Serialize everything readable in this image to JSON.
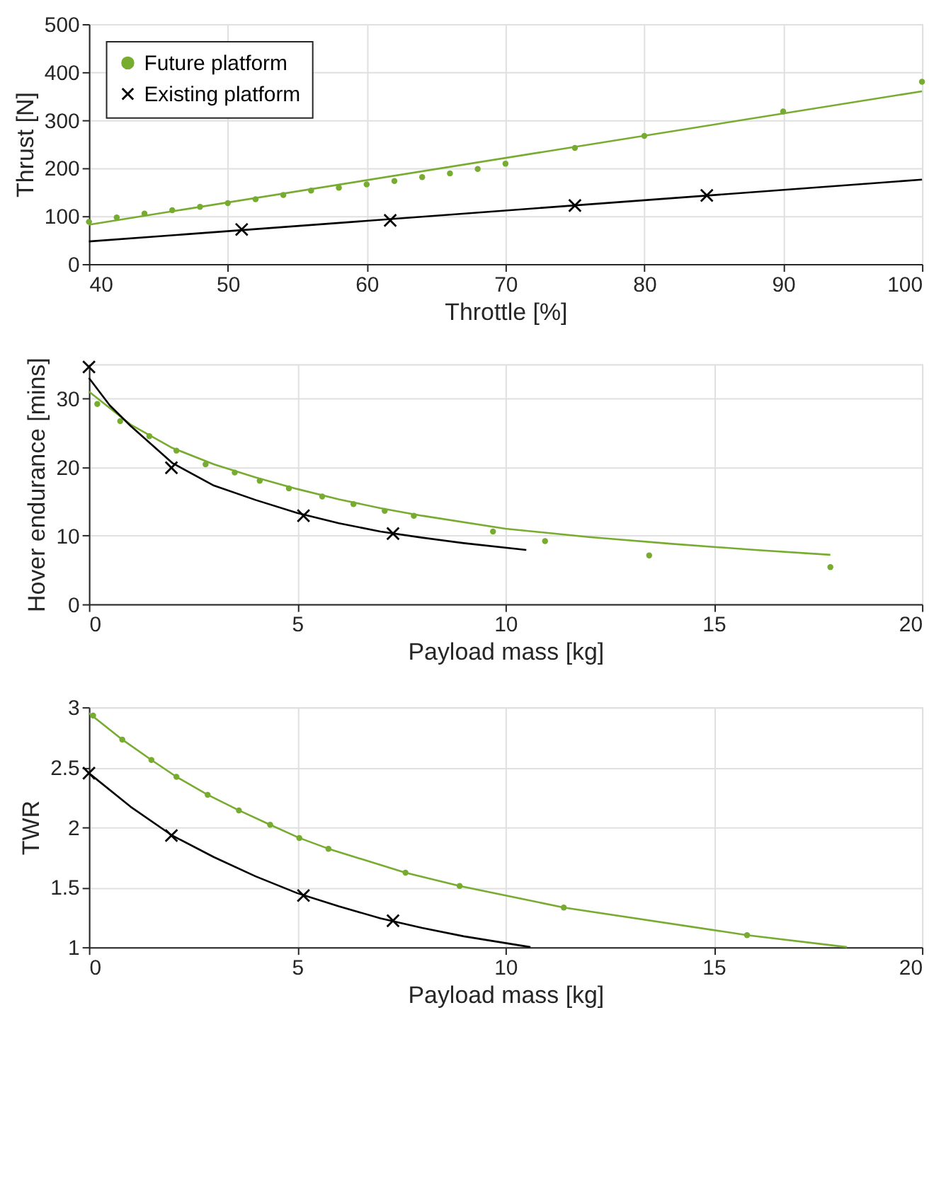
{
  "chart_data": [
    {
      "type": "scatter",
      "xlabel": "Throttle [%]",
      "ylabel": "Thrust [N]",
      "xlim": [
        40,
        100
      ],
      "xticks": [
        40,
        50,
        60,
        70,
        80,
        90,
        100
      ],
      "ylim": [
        0,
        500
      ],
      "yticks": [
        0,
        100,
        200,
        300,
        400,
        500
      ],
      "grid": true,
      "legend": "top left",
      "series": [
        {
          "name": "Future platform",
          "type": "scatter",
          "marker": "circle",
          "color": "#77ac30",
          "x": [
            40,
            42,
            44,
            46,
            48,
            50,
            52,
            54,
            56,
            58,
            60,
            62,
            64,
            66,
            68,
            70,
            75,
            80,
            90,
            100
          ],
          "values": [
            88,
            97,
            105,
            112,
            119,
            127,
            135,
            144,
            153,
            159,
            166,
            173,
            181,
            189,
            198,
            209,
            242,
            267,
            318,
            380
          ]
        },
        {
          "name": "Existing platform",
          "type": "scatter",
          "marker": "cross",
          "color": "#000000",
          "x": [
            51,
            61.7,
            75,
            84.5
          ],
          "values": [
            72,
            91,
            122,
            143
          ]
        },
        {
          "type": "line",
          "marker": "none",
          "color": "#77ac30",
          "x": [
            40,
            100
          ],
          "values": [
            82,
            360
          ]
        },
        {
          "type": "line",
          "marker": "none",
          "color": "#000000",
          "x": [
            40,
            100
          ],
          "values": [
            47,
            176
          ]
        }
      ]
    },
    {
      "type": "scatter",
      "xlabel": "Payload mass [kg]",
      "ylabel": "Hover endurance [mins]",
      "xlim": [
        0,
        20
      ],
      "xticks": [
        0,
        5,
        10,
        15,
        20
      ],
      "ylim": [
        0,
        35
      ],
      "yticks": [
        0,
        10,
        20,
        30
      ],
      "grid": true,
      "series": [
        {
          "type": "scatter",
          "marker": "circle",
          "color": "#77ac30",
          "x": [
            0.2,
            0.75,
            1.45,
            2.1,
            2.8,
            3.5,
            4.1,
            4.8,
            5.6,
            6.35,
            7.1,
            7.8,
            9.7,
            10.95,
            13.45,
            17.8
          ],
          "values": [
            29.2,
            26.7,
            24.5,
            22.4,
            20.4,
            19.2,
            18.0,
            16.9,
            15.7,
            14.6,
            13.6,
            12.9,
            10.6,
            9.2,
            7.1,
            5.4
          ]
        },
        {
          "type": "scatter",
          "marker": "cross",
          "color": "#000000",
          "x": [
            0,
            1.98,
            5.15,
            7.3
          ],
          "values": [
            34.6,
            19.9,
            12.9,
            10.3
          ]
        },
        {
          "type": "line",
          "marker": "none",
          "color": "#77ac30",
          "x": [
            0,
            1,
            2,
            3,
            4,
            5,
            6,
            7,
            8,
            10,
            12,
            14,
            16,
            17.8
          ],
          "values": [
            31,
            26.2,
            22.8,
            20.4,
            18.5,
            16.8,
            15.3,
            14.0,
            12.9,
            11.0,
            9.8,
            8.8,
            7.9,
            7.2
          ]
        },
        {
          "type": "line",
          "marker": "none",
          "color": "#000000",
          "x": [
            0,
            0.5,
            1,
            2,
            3,
            4,
            5,
            6,
            7,
            8,
            9,
            10.5
          ],
          "values": [
            33,
            29,
            26,
            20.6,
            17.3,
            15.2,
            13.3,
            11.8,
            10.6,
            9.7,
            8.9,
            7.9
          ]
        }
      ]
    },
    {
      "type": "scatter",
      "xlabel": "Payload mass [kg]",
      "ylabel": "TWR",
      "xlim": [
        0,
        20
      ],
      "xticks": [
        0,
        5,
        10,
        15,
        20
      ],
      "ylim": [
        1,
        3
      ],
      "yticks": [
        1,
        1.5,
        2,
        2.5,
        3
      ],
      "grid": true,
      "series": [
        {
          "type": "scatter",
          "marker": "circle",
          "color": "#77ac30",
          "x": [
            0.1,
            0.8,
            1.5,
            2.1,
            2.85,
            3.6,
            4.35,
            5.05,
            5.75,
            7.6,
            8.9,
            11.4,
            15.8
          ],
          "values": [
            2.93,
            2.73,
            2.56,
            2.42,
            2.27,
            2.14,
            2.02,
            1.91,
            1.82,
            1.62,
            1.51,
            1.33,
            1.1
          ]
        },
        {
          "type": "scatter",
          "marker": "cross",
          "color": "#000000",
          "x": [
            0,
            1.98,
            5.15,
            7.3
          ],
          "values": [
            2.45,
            1.93,
            1.43,
            1.22
          ]
        },
        {
          "type": "line",
          "marker": "none",
          "color": "#77ac30",
          "x": [
            0,
            0.8,
            1.5,
            2.1,
            2.85,
            3.6,
            4.35,
            5.05,
            5.75,
            7.6,
            8.9,
            11.4,
            15.8,
            18.2
          ],
          "values": [
            2.95,
            2.73,
            2.56,
            2.42,
            2.27,
            2.14,
            2.02,
            1.91,
            1.82,
            1.62,
            1.51,
            1.33,
            1.1,
            1.0
          ]
        },
        {
          "type": "line",
          "marker": "none",
          "color": "#000000",
          "x": [
            0,
            1,
            2,
            3,
            4,
            5,
            6,
            7,
            8,
            9,
            10.6
          ],
          "values": [
            2.45,
            2.17,
            1.93,
            1.75,
            1.59,
            1.45,
            1.34,
            1.24,
            1.16,
            1.09,
            1.0
          ]
        }
      ]
    }
  ]
}
